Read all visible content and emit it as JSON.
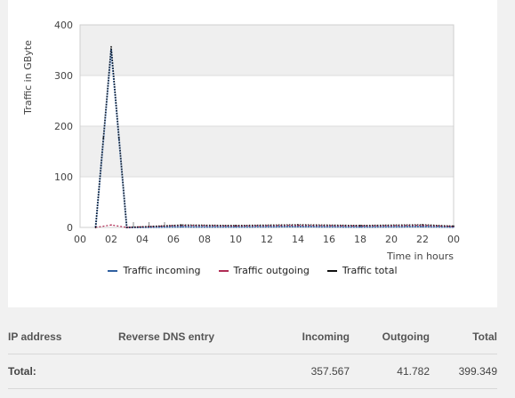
{
  "chart_data": {
    "type": "line",
    "ylabel": "Traffic in GByte",
    "xlabel": "Time in hours",
    "ylim": [
      0,
      400
    ],
    "yticks": [
      0,
      100,
      200,
      300,
      400
    ],
    "xticks": [
      "00",
      "02",
      "04",
      "06",
      "08",
      "10",
      "12",
      "14",
      "16",
      "18",
      "20",
      "22",
      "00"
    ],
    "grid": "horizontal bands",
    "legend_position": "bottom",
    "series": [
      {
        "name": "Traffic incoming",
        "color": "#2f5f9f",
        "x": [
          1.0,
          1.5,
          2.0,
          2.5,
          3.0,
          6.5,
          10.0,
          14.0,
          18.0,
          22.0,
          24.0
        ],
        "y": [
          0,
          175,
          352,
          175,
          0,
          1.2,
          1.0,
          1.5,
          1.0,
          1.5,
          0.8
        ]
      },
      {
        "name": "Traffic outgoing",
        "color": "#b02c55",
        "x": [
          1.0,
          2.0,
          3.0,
          6.5,
          10.0,
          14.0,
          18.0,
          22.0,
          24.0
        ],
        "y": [
          0,
          5,
          0,
          4,
          3,
          4,
          3,
          4,
          2
        ]
      },
      {
        "name": "Traffic total",
        "color": "#111111",
        "x": [
          1.0,
          1.5,
          2.0,
          2.5,
          3.0,
          6.5,
          10.0,
          14.0,
          18.0,
          22.0,
          24.0
        ],
        "y": [
          0,
          177,
          357,
          177,
          0,
          5,
          4,
          5.5,
          4,
          5.5,
          2.8
        ]
      }
    ]
  },
  "table": {
    "headers": {
      "ip": "IP address",
      "dns": "Reverse DNS entry",
      "incoming": "Incoming",
      "outgoing": "Outgoing",
      "total": "Total"
    },
    "total_row": {
      "label": "Total:",
      "incoming": "357.567",
      "outgoing": "41.782",
      "total": "399.349"
    }
  }
}
